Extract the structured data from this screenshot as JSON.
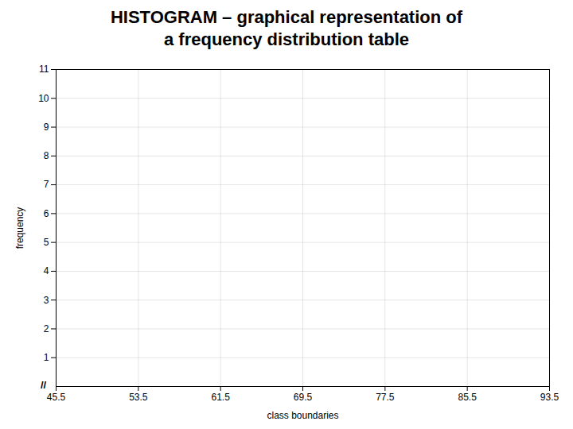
{
  "chart_data": {
    "type": "histogram",
    "title": "HISTOGRAM – graphical representation of\na frequency distribution table",
    "xlabel": "class boundaries",
    "ylabel": "frequency",
    "xlim": [
      45.5,
      93.5
    ],
    "xticks": [
      45.5,
      53.5,
      61.5,
      69.5,
      77.5,
      85.5,
      93.5
    ],
    "ylim": [
      0,
      11
    ],
    "yticks": [
      1,
      2,
      3,
      4,
      5,
      6,
      7,
      8,
      9,
      10,
      11
    ],
    "grid": true,
    "annotations": [
      {
        "text": "//"
      }
    ]
  }
}
